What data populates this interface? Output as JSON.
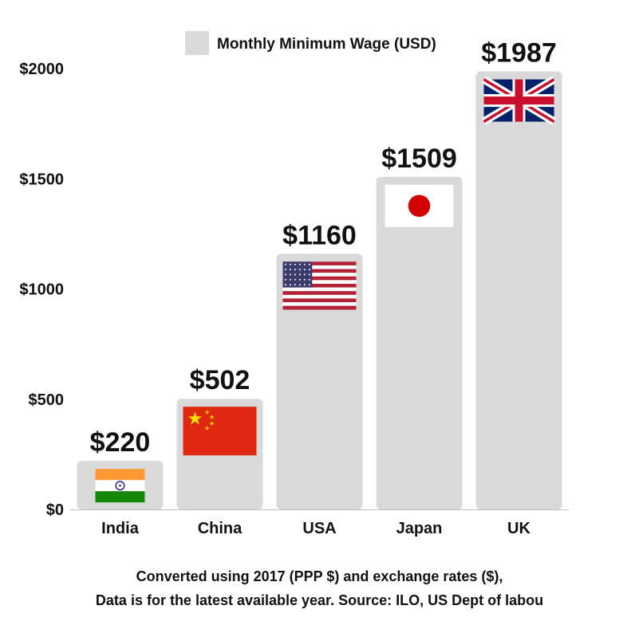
{
  "chart_data": {
    "type": "bar",
    "categories": [
      "India",
      "China",
      "USA",
      "Japan",
      "UK"
    ],
    "series": [
      {
        "name": "Monthly Minimum Wage (USD)",
        "values": [
          220,
          502,
          1160,
          1509,
          1987
        ]
      }
    ],
    "value_labels": [
      "$220",
      "$502",
      "$1160",
      "$1509",
      "$1987"
    ],
    "flags": [
      "india-flag-icon",
      "china-flag-icon",
      "usa-flag-icon",
      "japan-flag-icon",
      "uk-flag-icon"
    ],
    "ylim": [
      0,
      2000
    ],
    "yticks": [
      0,
      500,
      1000,
      1500,
      2000
    ],
    "ytick_labels": [
      "$0",
      "$500",
      "$1000",
      "$1500",
      "$2000"
    ],
    "legend_position": "top",
    "grid": false,
    "bar_color": "#d9d9d9"
  },
  "footnote": {
    "line1": "Converted using 2017 (PPP $) and exchange rates ($),",
    "line2": "Data is for the latest available year. Source: ILO, US Dept of labou"
  }
}
